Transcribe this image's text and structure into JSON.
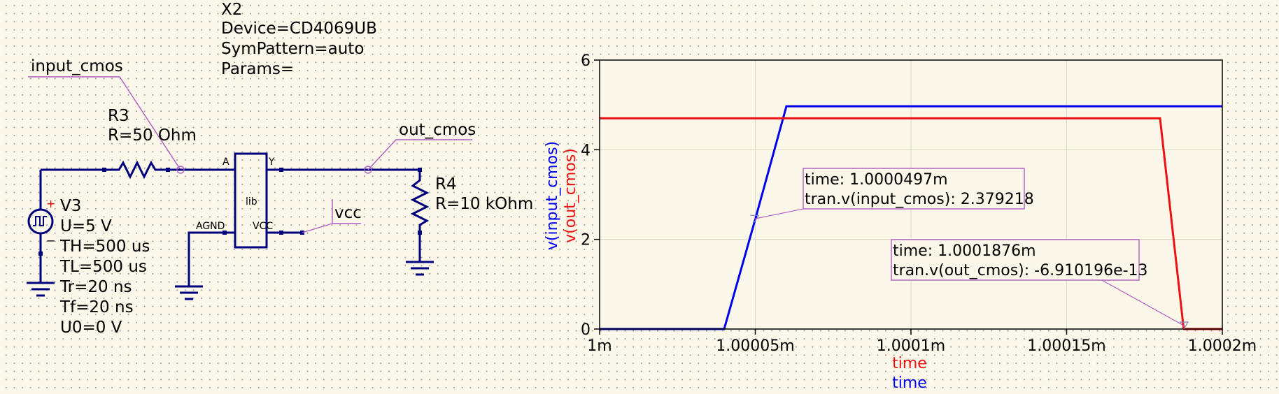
{
  "schematic": {
    "x2": {
      "name": "X2",
      "device": "Device=CD4069UB",
      "sympattern": "SymPattern=auto",
      "params": "Params=",
      "body": "lib",
      "pin_a": "A",
      "pin_y": "Y",
      "pin_agnd": "AGND",
      "pin_vcc": "VCC"
    },
    "r3": {
      "name": "R3",
      "value": "R=50 Ohm"
    },
    "r4": {
      "name": "R4",
      "value": "R=10 kOhm"
    },
    "v3": {
      "name": "V3",
      "u": "U=5 V",
      "th": "TH=500 us",
      "tl": "TL=500 us",
      "tr": "Tr=20 ns",
      "tf": "Tf=20 ns",
      "u0": "U0=0 V",
      "plus": "+",
      "minus": "−"
    },
    "labels": {
      "input": "input_cmos",
      "output": "out_cmos",
      "vcc": "vcc"
    }
  },
  "chart_data": {
    "type": "line",
    "xlim": [
      0.001,
      0.0010002
    ],
    "ylim": [
      0,
      6
    ],
    "x_ticks": [
      0.001,
      0.00100005,
      0.0010001,
      0.00100015,
      0.0010002
    ],
    "x_tick_labels": [
      "1m",
      "1.00005m",
      "1.0001m",
      "1.00015m",
      "1.0002m"
    ],
    "y_ticks": [
      0,
      2,
      4,
      6
    ],
    "y_tick_labels": [
      "0",
      "2",
      "4",
      "6"
    ],
    "xlabels": [
      "time",
      "time"
    ],
    "ylabels": [
      "v(input_cmos)",
      "v(out_cmos)"
    ],
    "grid": true,
    "series": [
      {
        "name": "v(input_cmos)",
        "color": "#0000ee",
        "x": [
          0.001,
          0.00100004,
          0.0010000497,
          0.00100006,
          0.0010002
        ],
        "y": [
          0,
          0,
          2.379218,
          4.97,
          4.97
        ]
      },
      {
        "name": "v(out_cmos)",
        "color": "#ee1111",
        "x": [
          0.001,
          0.00100018,
          0.0010001876,
          0.0010002
        ],
        "y": [
          4.7,
          4.7,
          0,
          0
        ]
      }
    ],
    "markers": [
      {
        "time_label": "time: 1.0000497m",
        "value_label": "tran.v(input_cmos): 2.379218",
        "x": 0.0010000497,
        "y": 2.379218
      },
      {
        "time_label": "time: 1.0001876m",
        "value_label": "tran.v(out_cmos): -6.910196e-13",
        "x": 0.0010001876,
        "y": 0
      }
    ]
  }
}
